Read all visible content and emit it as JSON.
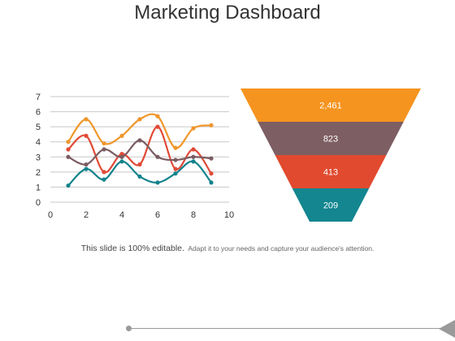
{
  "page": {
    "title": "Marketing Dashboard",
    "caption_main": "This slide is 100% editable.",
    "caption_sub": "Adapt it to your needs and capture your audience's attention."
  },
  "chart_data": [
    {
      "type": "line",
      "xlim": [
        0,
        10
      ],
      "ylim": [
        0,
        7
      ],
      "xticks": [
        0,
        2,
        4,
        6,
        8,
        10
      ],
      "yticks": [
        0,
        1,
        2,
        3,
        4,
        5,
        6,
        7
      ],
      "grid": true,
      "smooth": true,
      "series": [
        {
          "color": "#F0962A",
          "x": [
            1,
            2,
            3,
            4,
            5,
            6,
            7,
            8,
            9
          ],
          "values": [
            4.0,
            5.5,
            3.9,
            4.4,
            5.5,
            5.7,
            3.6,
            4.9,
            5.1
          ]
        },
        {
          "color": "#E04A36",
          "x": [
            1,
            2,
            3,
            4,
            5,
            6,
            7,
            8,
            9
          ],
          "values": [
            3.5,
            4.4,
            2.0,
            3.2,
            2.5,
            5.0,
            2.2,
            3.5,
            1.9
          ]
        },
        {
          "color": "#7A5C62",
          "x": [
            1,
            2,
            3,
            4,
            5,
            6,
            7,
            8,
            9
          ],
          "values": [
            3.0,
            2.5,
            3.5,
            3.0,
            4.1,
            3.0,
            2.8,
            3.0,
            2.9
          ]
        },
        {
          "color": "#13838C",
          "x": [
            1,
            2,
            3,
            4,
            5,
            6,
            7,
            8,
            9
          ],
          "values": [
            1.1,
            2.2,
            1.5,
            2.7,
            1.7,
            1.3,
            1.9,
            2.7,
            1.3
          ]
        }
      ]
    },
    {
      "type": "funnel",
      "values": [
        "2,461",
        "823",
        "413",
        "209"
      ],
      "colors": [
        "#F5941F",
        "#7D5E63",
        "#E24A2F",
        "#13868F"
      ]
    }
  ]
}
